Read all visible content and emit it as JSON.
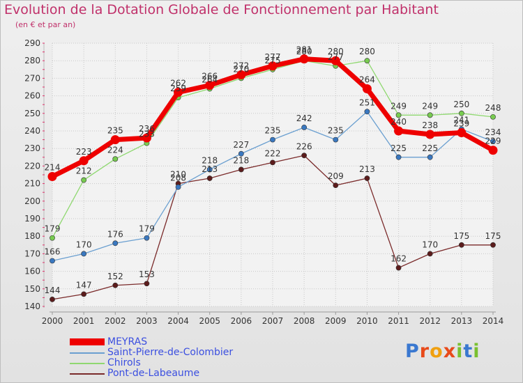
{
  "header": {
    "title": "Evolution de la Dotation Globale de Fonctionnement par Habitant",
    "subtitle": "(en € et par an)"
  },
  "colors": {
    "title": "#c0306a",
    "legend_text": "#3b4fe0",
    "grid": "#c8c8c8",
    "axis_tick": "#e0306a"
  },
  "logo": {
    "text": "Proxiti"
  },
  "chart_data": {
    "type": "line",
    "title": "Evolution de la Dotation Globale de Fonctionnement par Habitant",
    "subtitle": "(en € et par an)",
    "xlabel": "",
    "ylabel": "",
    "x": [
      2000,
      2001,
      2002,
      2003,
      2004,
      2005,
      2006,
      2007,
      2008,
      2009,
      2010,
      2011,
      2012,
      2013,
      2014
    ],
    "ylim": [
      140,
      290
    ],
    "yticks": [
      140,
      150,
      160,
      170,
      180,
      190,
      200,
      210,
      220,
      230,
      240,
      250,
      260,
      270,
      280,
      290
    ],
    "grid": true,
    "legend_placement": "bottom-left",
    "series": [
      {
        "name": "Pont-de-Labeaume",
        "color": "#7a2a2a",
        "marker": "#5c1c1c",
        "values": [
          144,
          147,
          152,
          153,
          210,
          213,
          218,
          222,
          226,
          209,
          213,
          162,
          170,
          175,
          175
        ]
      },
      {
        "name": "Saint-Pierre-de-Colombier",
        "color": "#6a9fd0",
        "marker": "#3a78c0",
        "values": [
          166,
          170,
          176,
          179,
          208,
          218,
          227,
          235,
          242,
          235,
          251,
          225,
          225,
          241,
          234
        ]
      },
      {
        "name": "Chirols",
        "color": "#8fd870",
        "marker": "#78cc50",
        "values": [
          179,
          212,
          224,
          233,
          259,
          264,
          270,
          275,
          280,
          277,
          280,
          249,
          249,
          250,
          248
        ]
      },
      {
        "name": "MEYRAS",
        "color": "#ee0000",
        "marker": "#ee0000",
        "values": [
          214,
          223,
          235,
          236,
          262,
          266,
          272,
          277,
          281,
          280,
          264,
          240,
          238,
          239,
          229
        ]
      }
    ],
    "legend_order": [
      "MEYRAS",
      "Saint-Pierre-de-Colombier",
      "Chirols",
      "Pont-de-Labeaume"
    ]
  }
}
